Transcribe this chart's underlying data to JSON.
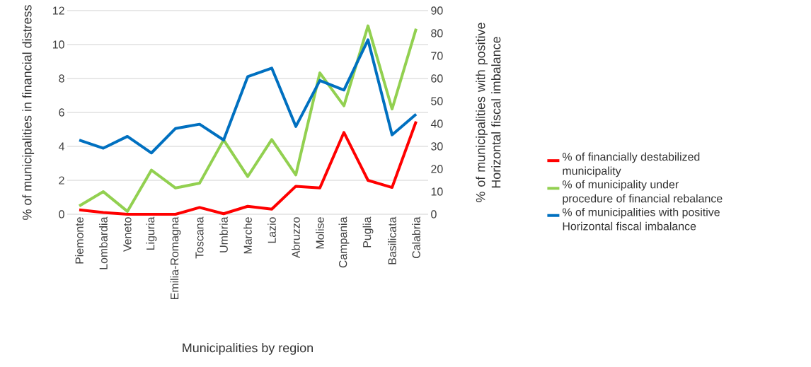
{
  "chart_data": {
    "type": "line",
    "xlabel": "Municipalities by region",
    "ylabel": "% of municipalities in financial distress",
    "y2label": "% of municipalities with positive Horizontal fiscal imbalance",
    "categories": [
      "Piemonte",
      "Lombardia",
      "Veneto",
      "Liguria",
      "Emilia-Romagna",
      "Toscana",
      "Umbria",
      "Marche",
      "Lazio",
      "Abruzzo",
      "Molise",
      "Campania",
      "Puglia",
      "Basilicata",
      "Calabria"
    ],
    "ylim": [
      0,
      12
    ],
    "yticks": [
      0,
      2,
      4,
      6,
      8,
      10,
      12
    ],
    "y2lim": [
      0,
      90
    ],
    "y2ticks": [
      0,
      10,
      20,
      30,
      40,
      50,
      60,
      70,
      80,
      90
    ],
    "grid": "y",
    "legend": "right",
    "marker": "none",
    "line_style": "solid",
    "series": [
      {
        "name": "% of financially destabilized municipality",
        "color": "#ff0000",
        "values": [
          0.26,
          0.1,
          0,
          0,
          0,
          0.4,
          0.03,
          0.47,
          0.3,
          1.65,
          1.55,
          4.82,
          2.0,
          1.58,
          5.47
        ]
      },
      {
        "name": "% of municipality under procedure of financial rebalance",
        "color": "#92d050",
        "values": [
          0.49,
          1.33,
          0.17,
          2.6,
          1.55,
          1.83,
          4.38,
          2.22,
          4.4,
          2.32,
          8.33,
          6.39,
          11.1,
          6.2,
          10.93
        ]
      },
      {
        "name": "% of municipalities with positive Horizontal fiscal imbalance",
        "color": "#0070c0",
        "axis": "y2",
        "values": [
          32.8,
          29.2,
          34.4,
          27.1,
          37.9,
          39.8,
          32.8,
          60.8,
          64.6,
          38.8,
          59.1,
          54.9,
          77.1,
          35.1,
          44.2
        ]
      }
    ]
  }
}
